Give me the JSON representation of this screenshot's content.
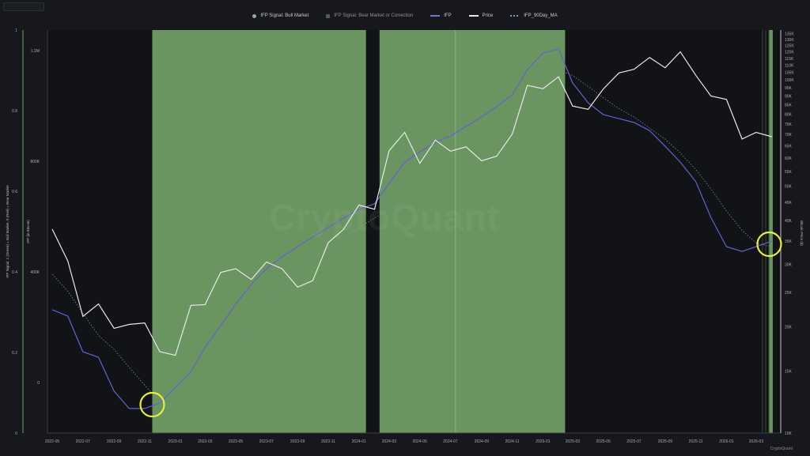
{
  "legend": {
    "bull": "IFP Signal: Bull Market",
    "bear": "IFP Signal: Bear Market or Correction",
    "ifp": "IFP",
    "price": "Price",
    "ma": "IFP_90Day_MA"
  },
  "watermark": "CryptoQuant",
  "credit": "CryptoQuant",
  "colors": {
    "background": "#17181d",
    "bull_zone": "#6a9460",
    "price": "#e8e8ea",
    "ifp": "#6a5fd0",
    "ma": "#8a92b8",
    "annotation": "#e6f03a"
  },
  "chart_data": {
    "type": "line",
    "axes": {
      "signal": {
        "label": "IFP Signal: 1 (Green) = Bull Market, 0 (Red) = Bear Market",
        "ticks": [
          "1",
          "0.8",
          "0.6",
          "0.4",
          "0.2",
          "0"
        ],
        "range": [
          0,
          1
        ]
      },
      "ifp": {
        "label": "IFP (in Bitcoin)",
        "ticks": [
          "1.2M",
          "800K",
          "400K",
          "0"
        ],
        "values": [
          1200000,
          800000,
          400000,
          0
        ]
      },
      "price": {
        "label": "Bitcoin Price ($)",
        "scale": "log",
        "ticks": [
          "135K",
          "130K",
          "125K",
          "120K",
          "115K",
          "110K",
          "105K",
          "100K",
          "95K",
          "90K",
          "85K",
          "80K",
          "75K",
          "70K",
          "65K",
          "60K",
          "55K",
          "50K",
          "45K",
          "40K",
          "35K",
          "30K",
          "25K",
          "20K",
          "15K",
          "10K"
        ],
        "values": [
          135000,
          130000,
          125000,
          120000,
          115000,
          110000,
          105000,
          100000,
          95000,
          90000,
          85000,
          80000,
          75000,
          70000,
          65000,
          60000,
          55000,
          50000,
          45000,
          40000,
          35000,
          30000,
          25000,
          20000,
          15000,
          10000
        ]
      },
      "x": {
        "ticks": [
          "2022-05",
          "2022-07",
          "2022-09",
          "2022-11",
          "2023-01",
          "2023-03",
          "2023-05",
          "2023-07",
          "2023-09",
          "2023-11",
          "2024-01",
          "2024-03",
          "2024-05",
          "2024-07",
          "2024-09",
          "2024-11",
          "2025-01",
          "2025-03",
          "2025-05",
          "2025-07",
          "2025-09",
          "2025-11",
          "2026-01",
          "2026-03"
        ]
      }
    },
    "bull_periods": [
      {
        "start": "2022-11-16",
        "end": "2024-01-15"
      },
      {
        "start": "2024-02-11",
        "end": "2025-02-14"
      },
      {
        "start": "2026-03-27",
        "end": "2026-04-03"
      }
    ],
    "dates": [
      "2022-05-01",
      "2022-06-01",
      "2022-07-01",
      "2022-08-01",
      "2022-09-01",
      "2022-10-01",
      "2022-11-01",
      "2022-12-01",
      "2023-01-01",
      "2023-02-01",
      "2023-03-01",
      "2023-04-01",
      "2023-05-01",
      "2023-06-01",
      "2023-07-01",
      "2023-08-01",
      "2023-09-01",
      "2023-10-01",
      "2023-11-01",
      "2023-12-01",
      "2024-01-01",
      "2024-02-01",
      "2024-03-01",
      "2024-04-01",
      "2024-05-01",
      "2024-06-01",
      "2024-07-01",
      "2024-08-01",
      "2024-09-01",
      "2024-10-01",
      "2024-11-01",
      "2024-12-01",
      "2025-01-01",
      "2025-02-01",
      "2025-03-01",
      "2025-04-01",
      "2025-05-01",
      "2025-06-01",
      "2025-07-01",
      "2025-08-01",
      "2025-09-01",
      "2025-10-01",
      "2025-11-01",
      "2025-12-01",
      "2026-01-01",
      "2026-02-01",
      "2026-03-01",
      "2026-04-01"
    ],
    "series": [
      {
        "name": "Price",
        "axis": "price",
        "values": [
          37800,
          30700,
          21400,
          23200,
          19800,
          20300,
          20500,
          17000,
          16600,
          23000,
          23100,
          28500,
          29200,
          27200,
          30500,
          29200,
          25900,
          27000,
          34600,
          37700,
          44200,
          43000,
          63000,
          71000,
          58000,
          67500,
          62800,
          64600,
          59000,
          60800,
          70200,
          96400,
          94400,
          102000,
          84300,
          82500,
          94200,
          104600,
          107100,
          115700,
          108200,
          120000,
          103000,
          90000,
          88000,
          68000,
          71000,
          69000
        ]
      },
      {
        "name": "IFP",
        "axis": "ifp",
        "values": [
          263000,
          240000,
          111000,
          91000,
          -31000,
          -94000,
          -94000,
          -74000,
          -17000,
          40000,
          126000,
          206000,
          283000,
          354000,
          411000,
          454000,
          491000,
          526000,
          560000,
          594000,
          626000,
          646000,
          720000,
          797000,
          834000,
          869000,
          891000,
          926000,
          960000,
          997000,
          1040000,
          1131000,
          1191000,
          1206000,
          1083000,
          1011000,
          969000,
          954000,
          940000,
          911000,
          854000,
          797000,
          726000,
          597000,
          491000,
          474000,
          491000,
          511000
        ]
      },
      {
        "name": "IFP_90Day_MA",
        "axis": "ifp",
        "values": [
          391000,
          330000,
          250000,
          170000,
          120000,
          55000,
          -10000,
          -70000,
          -85000,
          -60000,
          -15000,
          50000,
          125000,
          205000,
          280000,
          350000,
          405000,
          450000,
          490000,
          525000,
          560000,
          595000,
          625000,
          665000,
          720000,
          785000,
          835000,
          865000,
          895000,
          925000,
          960000,
          1000000,
          1055000,
          1130000,
          1110000,
          1070000,
          1030000,
          990000,
          960000,
          920000,
          880000,
          830000,
          770000,
          700000,
          620000,
          550000,
          505000,
          490000
        ]
      }
    ],
    "annotations": [
      {
        "type": "circle",
        "date": "2022-11-16",
        "ifp": -80000
      },
      {
        "type": "circle",
        "date": "2026-03-27",
        "ifp": 500000
      }
    ],
    "grid": false,
    "legend_position": "top"
  }
}
